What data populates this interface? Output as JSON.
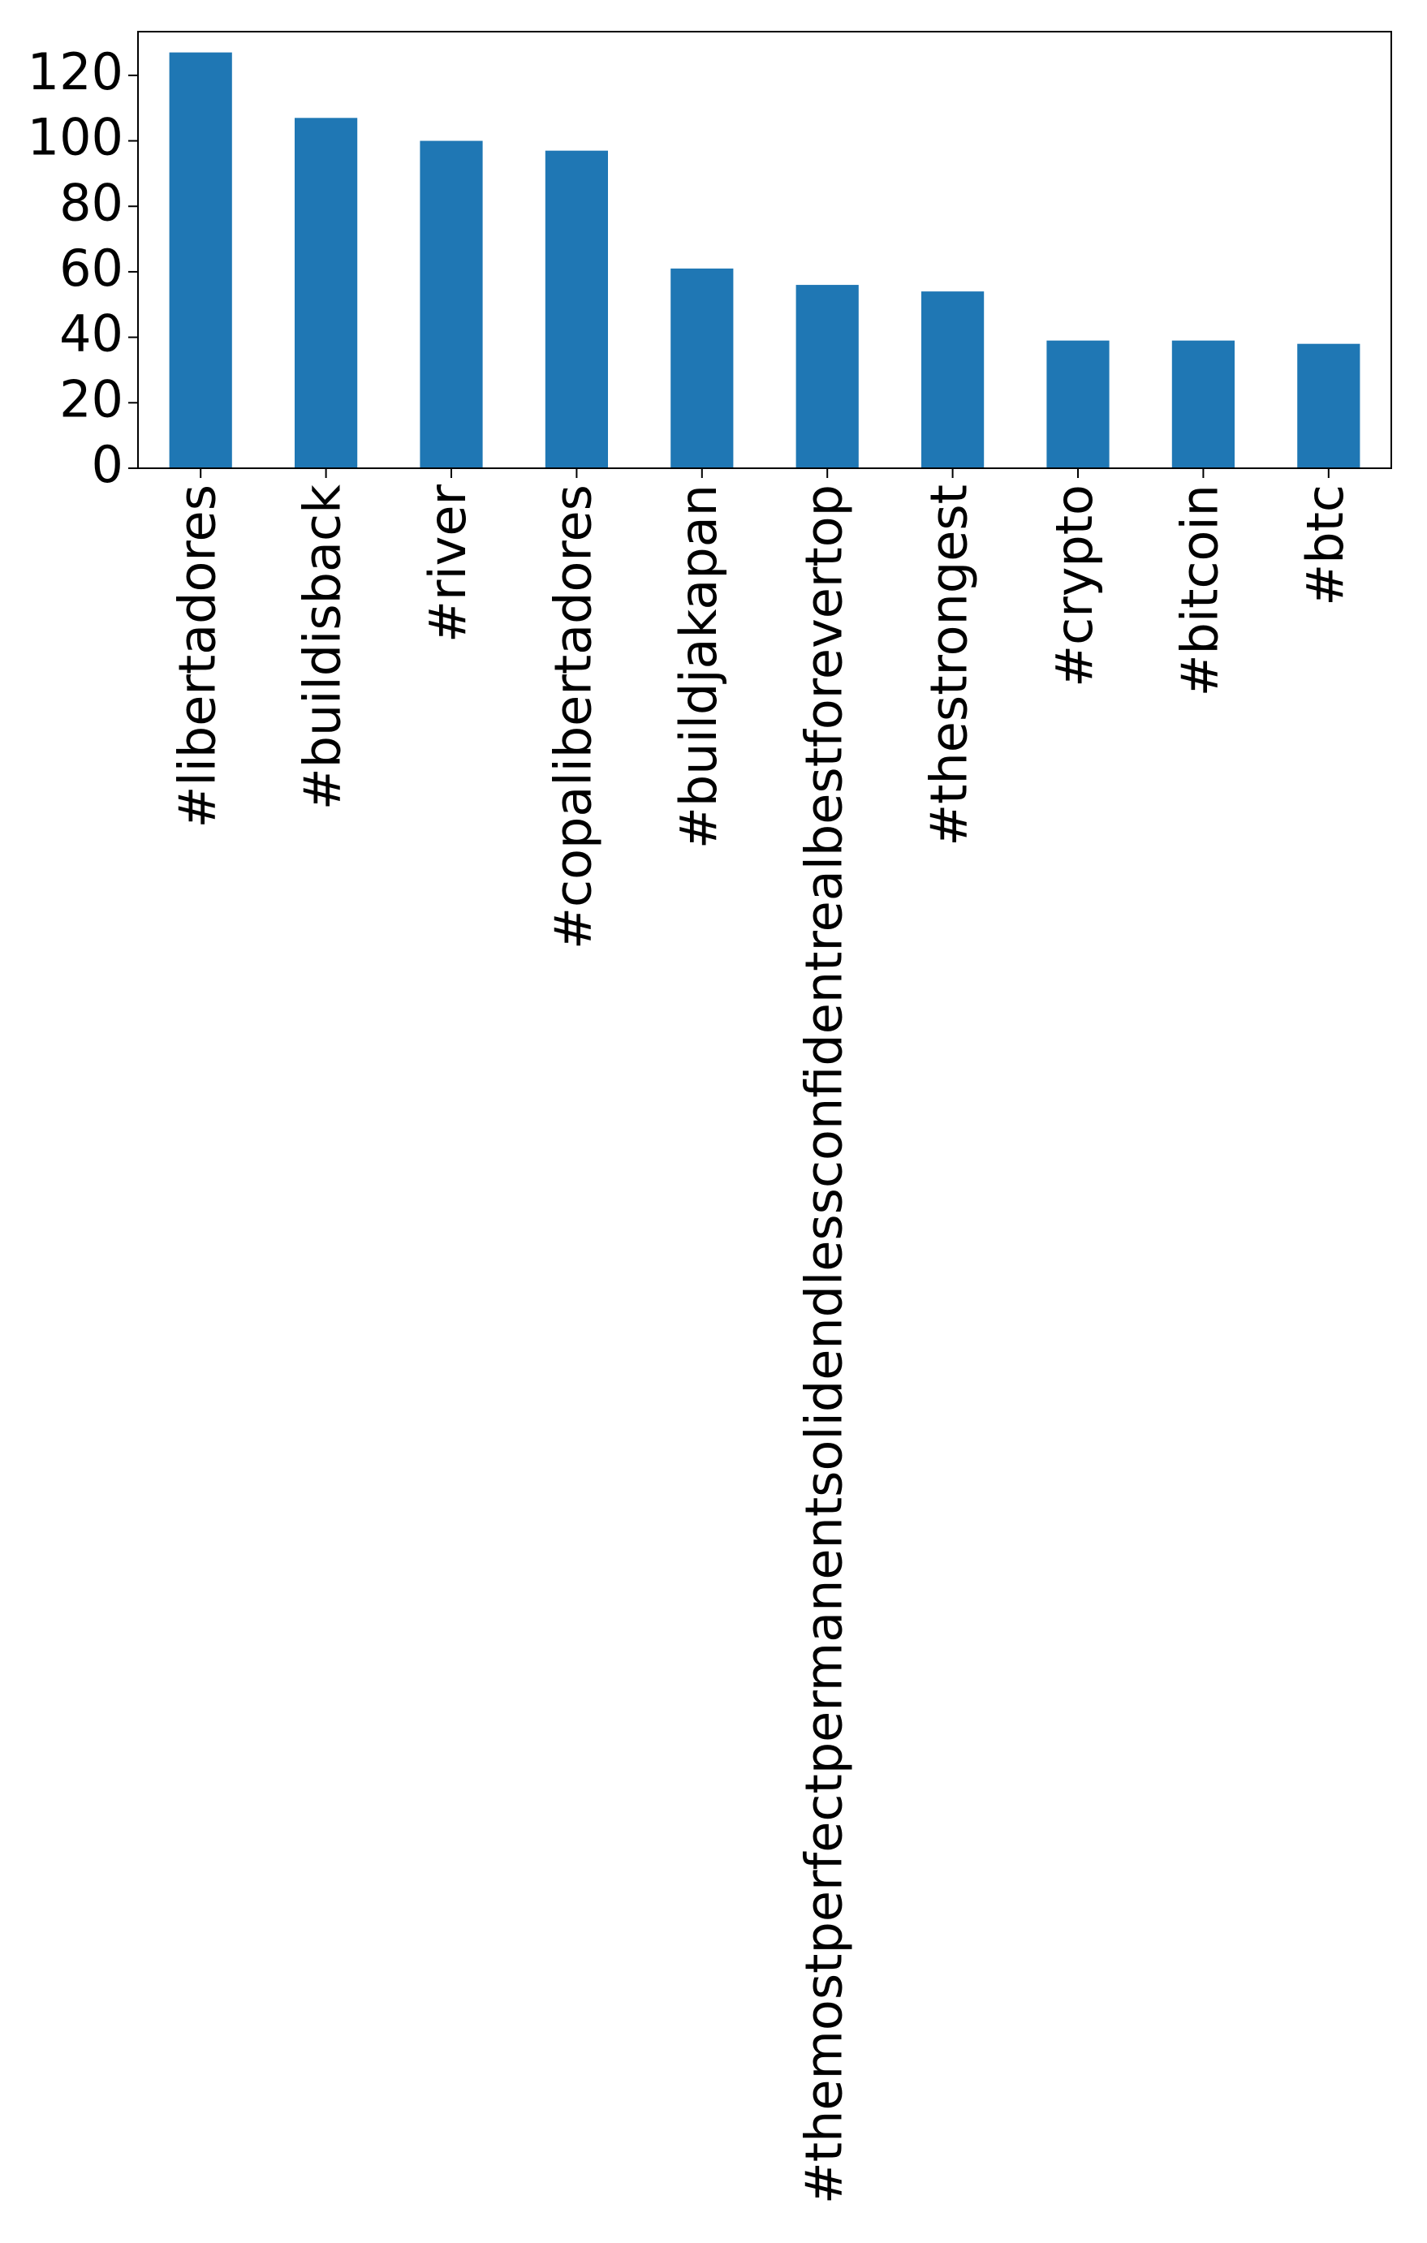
{
  "chart_data": {
    "type": "bar",
    "categories": [
      "#libertadores",
      "#buildisback",
      "#river",
      "#copalibertadores",
      "#buildjakapan",
      "#themostperfectpermanentsolidendlessconfidentrealbestforevertop",
      "#thestrongest",
      "#crypto",
      "#bitcoin",
      "#btc"
    ],
    "values": [
      127,
      107,
      100,
      97,
      61,
      56,
      54,
      39,
      39,
      38
    ],
    "color": "#1f77b4",
    "ylim": [
      0,
      133.35
    ],
    "yticks": [
      0,
      20,
      40,
      60,
      80,
      100,
      120
    ],
    "grid": false
  }
}
